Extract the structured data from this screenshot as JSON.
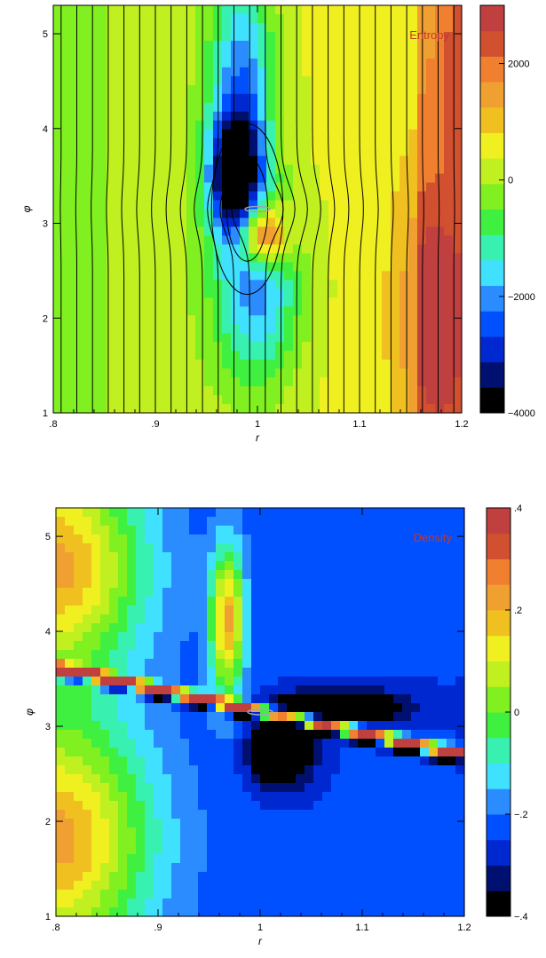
{
  "colors": {
    "annotation": "#c0392b",
    "field_lines": "#000000",
    "ring": "#9aa5c0"
  },
  "chart_data": [
    {
      "type": "heatmap",
      "annotation": "Entropy",
      "xlabel": "r",
      "ylabel": "φ",
      "xlim": [
        0.8,
        1.2
      ],
      "ylim": [
        1,
        5.3
      ],
      "xticks": [
        {
          "v": 0.8,
          "label": ".8"
        },
        {
          "v": 0.9,
          "label": ".9"
        },
        {
          "v": 1.0,
          "label": "1"
        },
        {
          "v": 1.1,
          "label": "1.1"
        },
        {
          "v": 1.2,
          "label": "1.2"
        }
      ],
      "yticks": [
        {
          "v": 1,
          "label": "1"
        },
        {
          "v": 2,
          "label": "2"
        },
        {
          "v": 3,
          "label": "3"
        },
        {
          "v": 4,
          "label": "4"
        },
        {
          "v": 5,
          "label": "5"
        }
      ],
      "colorbar": {
        "range": [
          -4000,
          3000
        ],
        "ticks": [
          {
            "v": 2000,
            "label": "2000"
          },
          {
            "v": 0,
            "label": "0"
          },
          {
            "v": -2000,
            "label": "−2000"
          },
          {
            "v": -4000,
            "label": "−4000"
          }
        ]
      },
      "background_value": 300,
      "field_lines": true,
      "features": [
        {
          "x": 0.978,
          "y": 3.5,
          "sx": 0.018,
          "sy": 0.45,
          "amp": -4200
        },
        {
          "x": 0.985,
          "y": 4.5,
          "sx": 0.022,
          "sy": 0.8,
          "amp": -2400
        },
        {
          "x": 1.0,
          "y": 2.3,
          "sx": 0.03,
          "sy": 0.7,
          "amp": -2300
        },
        {
          "x": 1.005,
          "y": 2.88,
          "sx": 0.016,
          "sy": 0.22,
          "amp": 3500
        },
        {
          "x": 1.175,
          "y": 2.0,
          "sx": 0.025,
          "sy": 1.0,
          "amp": 1500
        },
        {
          "x": 1.195,
          "y": 4.6,
          "sx": 0.01,
          "sy": 0.6,
          "amp": 800
        }
      ]
    },
    {
      "type": "heatmap",
      "annotation": "Density",
      "xlabel": "r",
      "ylabel": "φ",
      "xlim": [
        0.8,
        1.2
      ],
      "ylim": [
        1,
        5.3
      ],
      "xticks": [
        {
          "v": 0.8,
          "label": ".8"
        },
        {
          "v": 0.9,
          "label": ".9"
        },
        {
          "v": 1.0,
          "label": "1"
        },
        {
          "v": 1.1,
          "label": "1.1"
        },
        {
          "v": 1.2,
          "label": "1.2"
        }
      ],
      "yticks": [
        {
          "v": 1,
          "label": "1"
        },
        {
          "v": 2,
          "label": "2"
        },
        {
          "v": 3,
          "label": "3"
        },
        {
          "v": 4,
          "label": "4"
        },
        {
          "v": 5,
          "label": "5"
        }
      ],
      "colorbar": {
        "range": [
          -0.4,
          0.4
        ],
        "ticks": [
          {
            "v": 0.4,
            "label": ".4"
          },
          {
            "v": 0.2,
            "label": ".2"
          },
          {
            "v": 0,
            "label": "0"
          },
          {
            "v": -0.2,
            "label": "−.2"
          },
          {
            "v": -0.4,
            "label": "−.4"
          }
        ]
      },
      "background_value": -0.24,
      "field_lines": false,
      "features": [
        {
          "x": 0.8,
          "y": 4.7,
          "sx": 0.06,
          "sy": 0.8,
          "amp": 0.45
        },
        {
          "x": 0.8,
          "y": 1.8,
          "sx": 0.065,
          "sy": 0.9,
          "amp": 0.45
        },
        {
          "x": 0.968,
          "y": 4.1,
          "sx": 0.012,
          "sy": 0.55,
          "amp": 0.45
        },
        {
          "x": 1.02,
          "y": 2.75,
          "sx": 0.02,
          "sy": 0.25,
          "amp": -0.35
        },
        {
          "x": 1.08,
          "y": 3.2,
          "sx": 0.04,
          "sy": 0.12,
          "amp": -0.3
        }
      ]
    }
  ]
}
